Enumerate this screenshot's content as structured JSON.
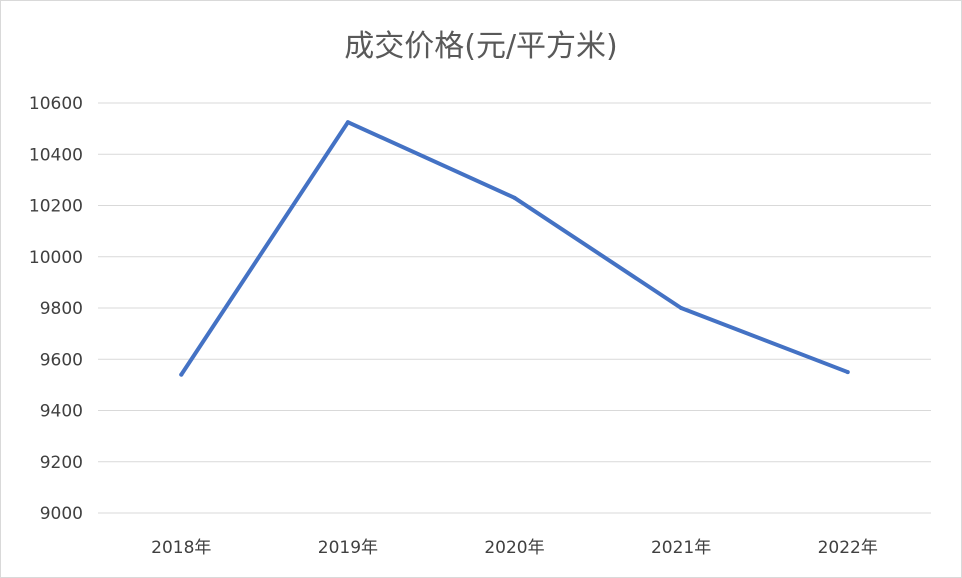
{
  "chart_data": {
    "type": "line",
    "title": "成交价格(元/平方米)",
    "xlabel": "",
    "ylabel": "",
    "categories": [
      "2018年",
      "2019年",
      "2020年",
      "2021年",
      "2022年"
    ],
    "y_ticks": [
      "9000",
      "9200",
      "9400",
      "9600",
      "9800",
      "10000",
      "10200",
      "10400",
      "10600"
    ],
    "ylim": [
      9000,
      10600
    ],
    "grid": true,
    "legend": "none",
    "series": [
      {
        "values": [
          9540,
          10525,
          10230,
          9800,
          9550
        ],
        "color": "#4472c4"
      }
    ]
  }
}
